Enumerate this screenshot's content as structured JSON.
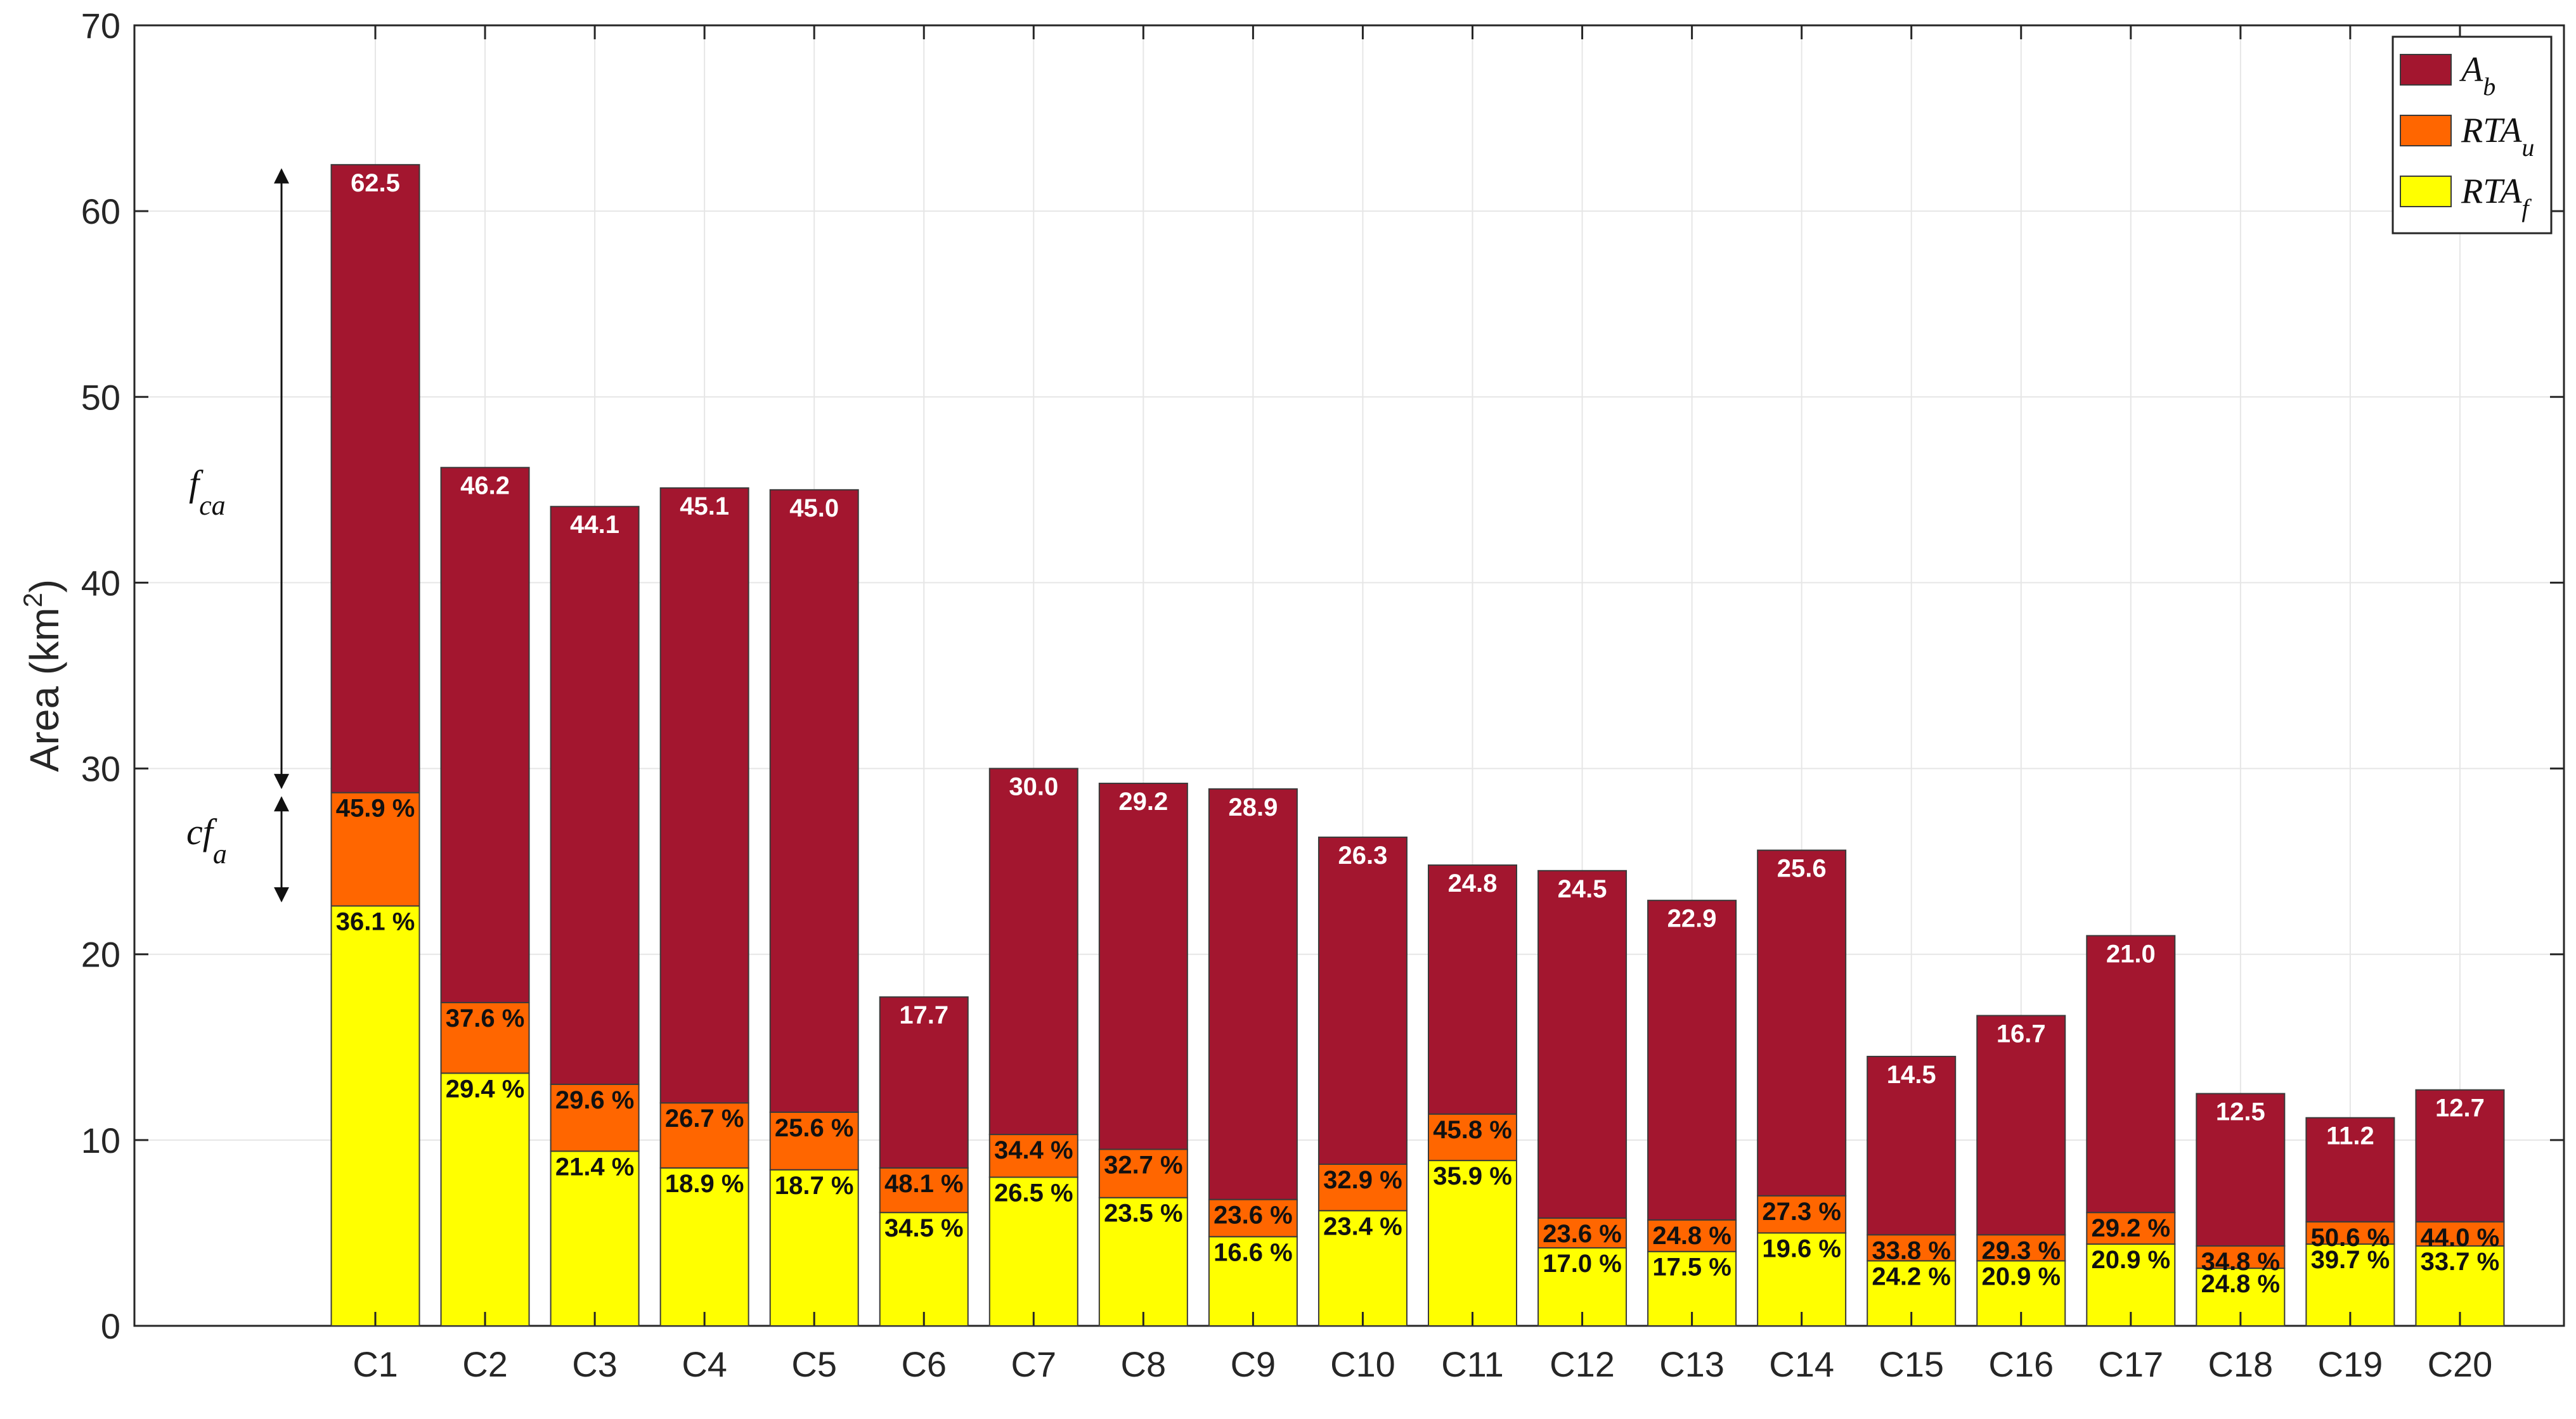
{
  "chart_data": {
    "type": "bar",
    "stacked": true,
    "categories": [
      "C1",
      "C2",
      "C3",
      "C4",
      "C5",
      "C6",
      "C7",
      "C8",
      "C9",
      "C10",
      "C11",
      "C12",
      "C13",
      "C14",
      "C15",
      "C16",
      "C17",
      "C18",
      "C19",
      "C20"
    ],
    "ylabel": "Area (km",
    "ylabel_sup": "2",
    "ylabel_close": ")",
    "ylim": [
      0,
      70
    ],
    "yticks": [
      0,
      10,
      20,
      30,
      40,
      50,
      60,
      70
    ],
    "grid": true,
    "legend_position": "top-right",
    "colors": {
      "Ab": "#a3162f",
      "RTAu": "#ff6600",
      "RTAf": "#ffff00"
    },
    "legend": [
      {
        "key": "Ab",
        "main": "A",
        "sub": "b"
      },
      {
        "key": "RTAu",
        "main": "RTA",
        "sub": "u"
      },
      {
        "key": "RTAf",
        "main": "RTA",
        "sub": "f"
      }
    ],
    "series": [
      {
        "key": "RTAf",
        "name": "RTAf",
        "values": [
          22.6,
          13.6,
          9.4,
          8.5,
          8.4,
          6.1,
          8.0,
          6.9,
          4.8,
          6.2,
          8.9,
          4.2,
          4.0,
          5.0,
          3.5,
          3.5,
          4.4,
          3.1,
          4.4,
          4.3
        ]
      },
      {
        "key": "RTAu",
        "name": "RTAu",
        "values": [
          6.1,
          3.8,
          3.6,
          3.5,
          3.1,
          2.4,
          2.3,
          2.6,
          2.0,
          2.5,
          2.5,
          1.6,
          1.7,
          2.0,
          1.4,
          1.4,
          1.7,
          1.2,
          1.2,
          1.3
        ]
      },
      {
        "key": "Ab",
        "name": "Ab",
        "values": [
          33.8,
          28.8,
          31.1,
          33.1,
          33.5,
          9.2,
          19.7,
          19.7,
          22.1,
          17.6,
          13.4,
          18.7,
          17.2,
          18.6,
          9.6,
          11.8,
          14.9,
          8.2,
          5.6,
          7.1
        ]
      }
    ],
    "total_labels": [
      "62.5",
      "46.2",
      "44.1",
      "45.1",
      "45.0",
      "17.7",
      "30.0",
      "29.2",
      "28.9",
      "26.3",
      "24.8",
      "24.5",
      "22.9",
      "25.6",
      "14.5",
      "16.7",
      "21.0",
      "12.5",
      "11.2",
      "12.7"
    ],
    "rtau_labels": [
      "45.9 %",
      "37.6 %",
      "29.6 %",
      "26.7 %",
      "25.6 %",
      "48.1 %",
      "34.4 %",
      "32.7 %",
      "23.6 %",
      "32.9 %",
      "45.8 %",
      "23.6 %",
      "24.8 %",
      "27.3 %",
      "33.8 %",
      "29.3 %",
      "29.2 %",
      "34.8 %",
      "50.6 %",
      "44.0 %"
    ],
    "rtaf_labels": [
      "36.1 %",
      "29.4 %",
      "21.4 %",
      "18.9 %",
      "18.7 %",
      "34.5 %",
      "26.5 %",
      "23.5 %",
      "16.6 %",
      "23.4 %",
      "35.9 %",
      "17.0 %",
      "17.5 %",
      "19.6 %",
      "24.2 %",
      "20.9 %",
      "20.9 %",
      "24.8 %",
      "39.7 %",
      "33.7 %"
    ],
    "annotations": [
      {
        "main": "f",
        "sub": "ca",
        "y_from": 62.5,
        "y_to": 28.7
      },
      {
        "main": "cf",
        "sub": "a",
        "y_from": 28.7,
        "y_to": 22.6
      }
    ]
  }
}
